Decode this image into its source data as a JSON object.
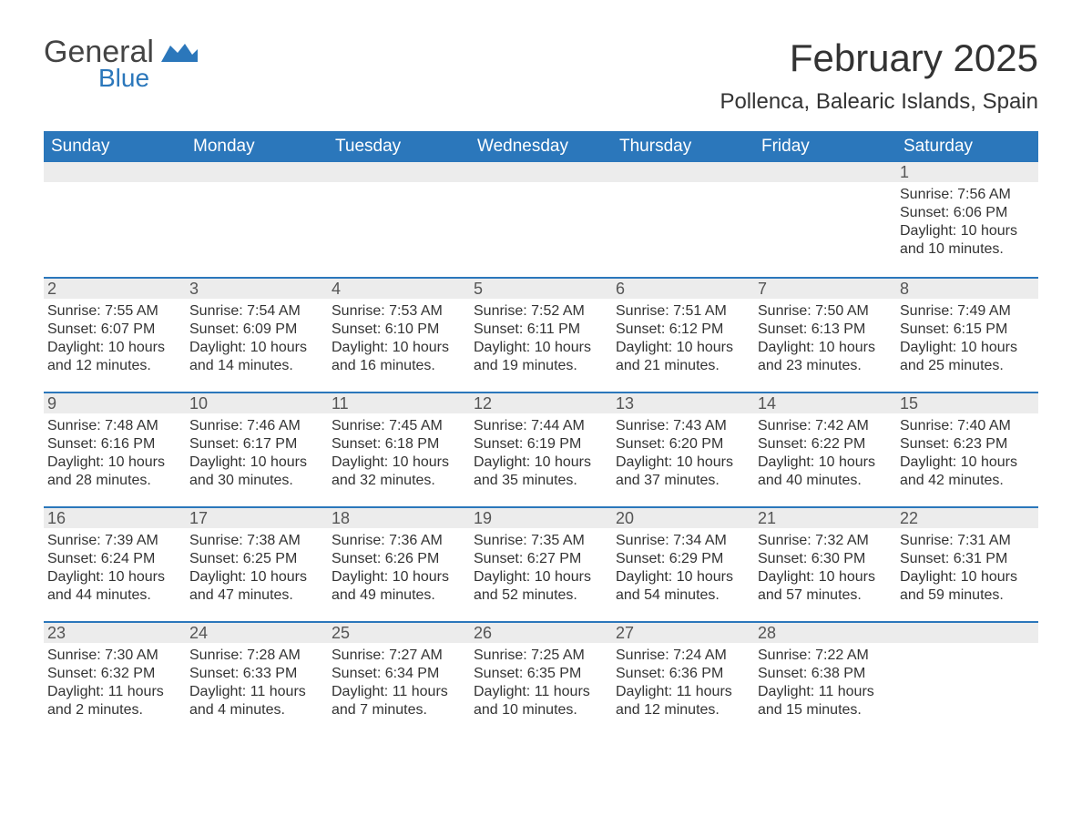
{
  "logo": {
    "word1": "General",
    "word2": "Blue",
    "flag_color": "#2b77bb"
  },
  "title": "February 2025",
  "location": "Pollenca, Balearic Islands, Spain",
  "colors": {
    "header_bg": "#2b77bb",
    "header_text": "#ffffff",
    "daynum_bg": "#ececec",
    "border": "#2b77bb",
    "text": "#333333"
  },
  "day_headers": [
    "Sunday",
    "Monday",
    "Tuesday",
    "Wednesday",
    "Thursday",
    "Friday",
    "Saturday"
  ],
  "weeks": [
    [
      {
        "day": "",
        "sunrise": "",
        "sunset": "",
        "daylight": ""
      },
      {
        "day": "",
        "sunrise": "",
        "sunset": "",
        "daylight": ""
      },
      {
        "day": "",
        "sunrise": "",
        "sunset": "",
        "daylight": ""
      },
      {
        "day": "",
        "sunrise": "",
        "sunset": "",
        "daylight": ""
      },
      {
        "day": "",
        "sunrise": "",
        "sunset": "",
        "daylight": ""
      },
      {
        "day": "",
        "sunrise": "",
        "sunset": "",
        "daylight": ""
      },
      {
        "day": "1",
        "sunrise": "Sunrise: 7:56 AM",
        "sunset": "Sunset: 6:06 PM",
        "daylight": "Daylight: 10 hours and 10 minutes."
      }
    ],
    [
      {
        "day": "2",
        "sunrise": "Sunrise: 7:55 AM",
        "sunset": "Sunset: 6:07 PM",
        "daylight": "Daylight: 10 hours and 12 minutes."
      },
      {
        "day": "3",
        "sunrise": "Sunrise: 7:54 AM",
        "sunset": "Sunset: 6:09 PM",
        "daylight": "Daylight: 10 hours and 14 minutes."
      },
      {
        "day": "4",
        "sunrise": "Sunrise: 7:53 AM",
        "sunset": "Sunset: 6:10 PM",
        "daylight": "Daylight: 10 hours and 16 minutes."
      },
      {
        "day": "5",
        "sunrise": "Sunrise: 7:52 AM",
        "sunset": "Sunset: 6:11 PM",
        "daylight": "Daylight: 10 hours and 19 minutes."
      },
      {
        "day": "6",
        "sunrise": "Sunrise: 7:51 AM",
        "sunset": "Sunset: 6:12 PM",
        "daylight": "Daylight: 10 hours and 21 minutes."
      },
      {
        "day": "7",
        "sunrise": "Sunrise: 7:50 AM",
        "sunset": "Sunset: 6:13 PM",
        "daylight": "Daylight: 10 hours and 23 minutes."
      },
      {
        "day": "8",
        "sunrise": "Sunrise: 7:49 AM",
        "sunset": "Sunset: 6:15 PM",
        "daylight": "Daylight: 10 hours and 25 minutes."
      }
    ],
    [
      {
        "day": "9",
        "sunrise": "Sunrise: 7:48 AM",
        "sunset": "Sunset: 6:16 PM",
        "daylight": "Daylight: 10 hours and 28 minutes."
      },
      {
        "day": "10",
        "sunrise": "Sunrise: 7:46 AM",
        "sunset": "Sunset: 6:17 PM",
        "daylight": "Daylight: 10 hours and 30 minutes."
      },
      {
        "day": "11",
        "sunrise": "Sunrise: 7:45 AM",
        "sunset": "Sunset: 6:18 PM",
        "daylight": "Daylight: 10 hours and 32 minutes."
      },
      {
        "day": "12",
        "sunrise": "Sunrise: 7:44 AM",
        "sunset": "Sunset: 6:19 PM",
        "daylight": "Daylight: 10 hours and 35 minutes."
      },
      {
        "day": "13",
        "sunrise": "Sunrise: 7:43 AM",
        "sunset": "Sunset: 6:20 PM",
        "daylight": "Daylight: 10 hours and 37 minutes."
      },
      {
        "day": "14",
        "sunrise": "Sunrise: 7:42 AM",
        "sunset": "Sunset: 6:22 PM",
        "daylight": "Daylight: 10 hours and 40 minutes."
      },
      {
        "day": "15",
        "sunrise": "Sunrise: 7:40 AM",
        "sunset": "Sunset: 6:23 PM",
        "daylight": "Daylight: 10 hours and 42 minutes."
      }
    ],
    [
      {
        "day": "16",
        "sunrise": "Sunrise: 7:39 AM",
        "sunset": "Sunset: 6:24 PM",
        "daylight": "Daylight: 10 hours and 44 minutes."
      },
      {
        "day": "17",
        "sunrise": "Sunrise: 7:38 AM",
        "sunset": "Sunset: 6:25 PM",
        "daylight": "Daylight: 10 hours and 47 minutes."
      },
      {
        "day": "18",
        "sunrise": "Sunrise: 7:36 AM",
        "sunset": "Sunset: 6:26 PM",
        "daylight": "Daylight: 10 hours and 49 minutes."
      },
      {
        "day": "19",
        "sunrise": "Sunrise: 7:35 AM",
        "sunset": "Sunset: 6:27 PM",
        "daylight": "Daylight: 10 hours and 52 minutes."
      },
      {
        "day": "20",
        "sunrise": "Sunrise: 7:34 AM",
        "sunset": "Sunset: 6:29 PM",
        "daylight": "Daylight: 10 hours and 54 minutes."
      },
      {
        "day": "21",
        "sunrise": "Sunrise: 7:32 AM",
        "sunset": "Sunset: 6:30 PM",
        "daylight": "Daylight: 10 hours and 57 minutes."
      },
      {
        "day": "22",
        "sunrise": "Sunrise: 7:31 AM",
        "sunset": "Sunset: 6:31 PM",
        "daylight": "Daylight: 10 hours and 59 minutes."
      }
    ],
    [
      {
        "day": "23",
        "sunrise": "Sunrise: 7:30 AM",
        "sunset": "Sunset: 6:32 PM",
        "daylight": "Daylight: 11 hours and 2 minutes."
      },
      {
        "day": "24",
        "sunrise": "Sunrise: 7:28 AM",
        "sunset": "Sunset: 6:33 PM",
        "daylight": "Daylight: 11 hours and 4 minutes."
      },
      {
        "day": "25",
        "sunrise": "Sunrise: 7:27 AM",
        "sunset": "Sunset: 6:34 PM",
        "daylight": "Daylight: 11 hours and 7 minutes."
      },
      {
        "day": "26",
        "sunrise": "Sunrise: 7:25 AM",
        "sunset": "Sunset: 6:35 PM",
        "daylight": "Daylight: 11 hours and 10 minutes."
      },
      {
        "day": "27",
        "sunrise": "Sunrise: 7:24 AM",
        "sunset": "Sunset: 6:36 PM",
        "daylight": "Daylight: 11 hours and 12 minutes."
      },
      {
        "day": "28",
        "sunrise": "Sunrise: 7:22 AM",
        "sunset": "Sunset: 6:38 PM",
        "daylight": "Daylight: 11 hours and 15 minutes."
      },
      {
        "day": "",
        "sunrise": "",
        "sunset": "",
        "daylight": ""
      }
    ]
  ]
}
